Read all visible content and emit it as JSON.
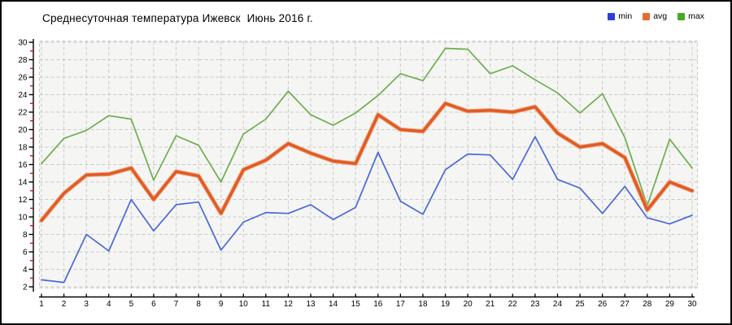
{
  "title": "Среднесуточная температура Ижевск  Июнь 2016 г.",
  "legend": {
    "items": [
      {
        "label": "min",
        "color": "#2b3fd9"
      },
      {
        "label": "avg",
        "color": "#e8692f"
      },
      {
        "label": "max",
        "color": "#44aa22"
      }
    ]
  },
  "chart_data": {
    "type": "line",
    "title": "Среднесуточная температура Ижевск  Июнь 2016 г.",
    "xlabel": "",
    "ylabel": "",
    "x": [
      1,
      2,
      3,
      4,
      5,
      6,
      7,
      8,
      9,
      10,
      11,
      12,
      13,
      14,
      15,
      16,
      17,
      18,
      19,
      20,
      21,
      22,
      23,
      24,
      25,
      26,
      27,
      28,
      29,
      30
    ],
    "xtick_labels": [
      "1",
      "2",
      "3",
      "4",
      "5",
      "6",
      "7",
      "8",
      "9",
      "10",
      "11",
      "12",
      "13",
      "14",
      "15",
      "16",
      "17",
      "18",
      "19",
      "20",
      "21",
      "22",
      "23",
      "24",
      "25",
      "26",
      "27",
      "28",
      "29",
      "30"
    ],
    "ylim": [
      2,
      30
    ],
    "ytick_step": 2,
    "ytick_labels": [
      "2",
      "4",
      "6",
      "8",
      "10",
      "12",
      "14",
      "16",
      "18",
      "20",
      "22",
      "24",
      "26",
      "28",
      "30"
    ],
    "grid": true,
    "legend_position": "top-right",
    "plot_bg_color": "#f5f5f4",
    "grid_color": "#c9c9c9",
    "axis_color": "#000000",
    "minor_tick_color": "#cc0000",
    "series": [
      {
        "name": "min",
        "color": "#4a68d8",
        "halo": null,
        "width": 1.7,
        "values": [
          2.8,
          2.5,
          8.0,
          6.1,
          12.0,
          8.4,
          11.4,
          11.7,
          6.2,
          9.4,
          10.5,
          10.4,
          11.4,
          9.7,
          11.1,
          17.4,
          11.8,
          10.3,
          15.4,
          17.2,
          17.1,
          14.3,
          19.2,
          14.3,
          13.3,
          10.4,
          13.5,
          9.9,
          9.2,
          10.2
        ]
      },
      {
        "name": "avg",
        "color": "#e05a26",
        "halo": "#f2a172",
        "width": 3.3,
        "values": [
          9.6,
          12.7,
          14.8,
          14.9,
          15.6,
          12.0,
          15.2,
          14.7,
          10.4,
          15.4,
          16.5,
          18.4,
          17.3,
          16.4,
          16.1,
          21.7,
          20.0,
          19.8,
          23.0,
          22.1,
          22.2,
          22.0,
          22.6,
          19.6,
          18.0,
          18.4,
          16.8,
          10.8,
          14.0,
          13.0
        ]
      },
      {
        "name": "max",
        "color": "#6fad4e",
        "halo": null,
        "width": 1.7,
        "values": [
          16.1,
          19.0,
          19.9,
          21.6,
          21.2,
          14.2,
          19.3,
          18.2,
          14.0,
          19.5,
          21.2,
          24.4,
          21.7,
          20.5,
          21.9,
          23.9,
          26.4,
          25.6,
          29.3,
          29.2,
          26.4,
          27.3,
          25.7,
          24.2,
          21.9,
          24.1,
          19.1,
          11.3,
          18.9,
          15.6
        ]
      }
    ]
  }
}
